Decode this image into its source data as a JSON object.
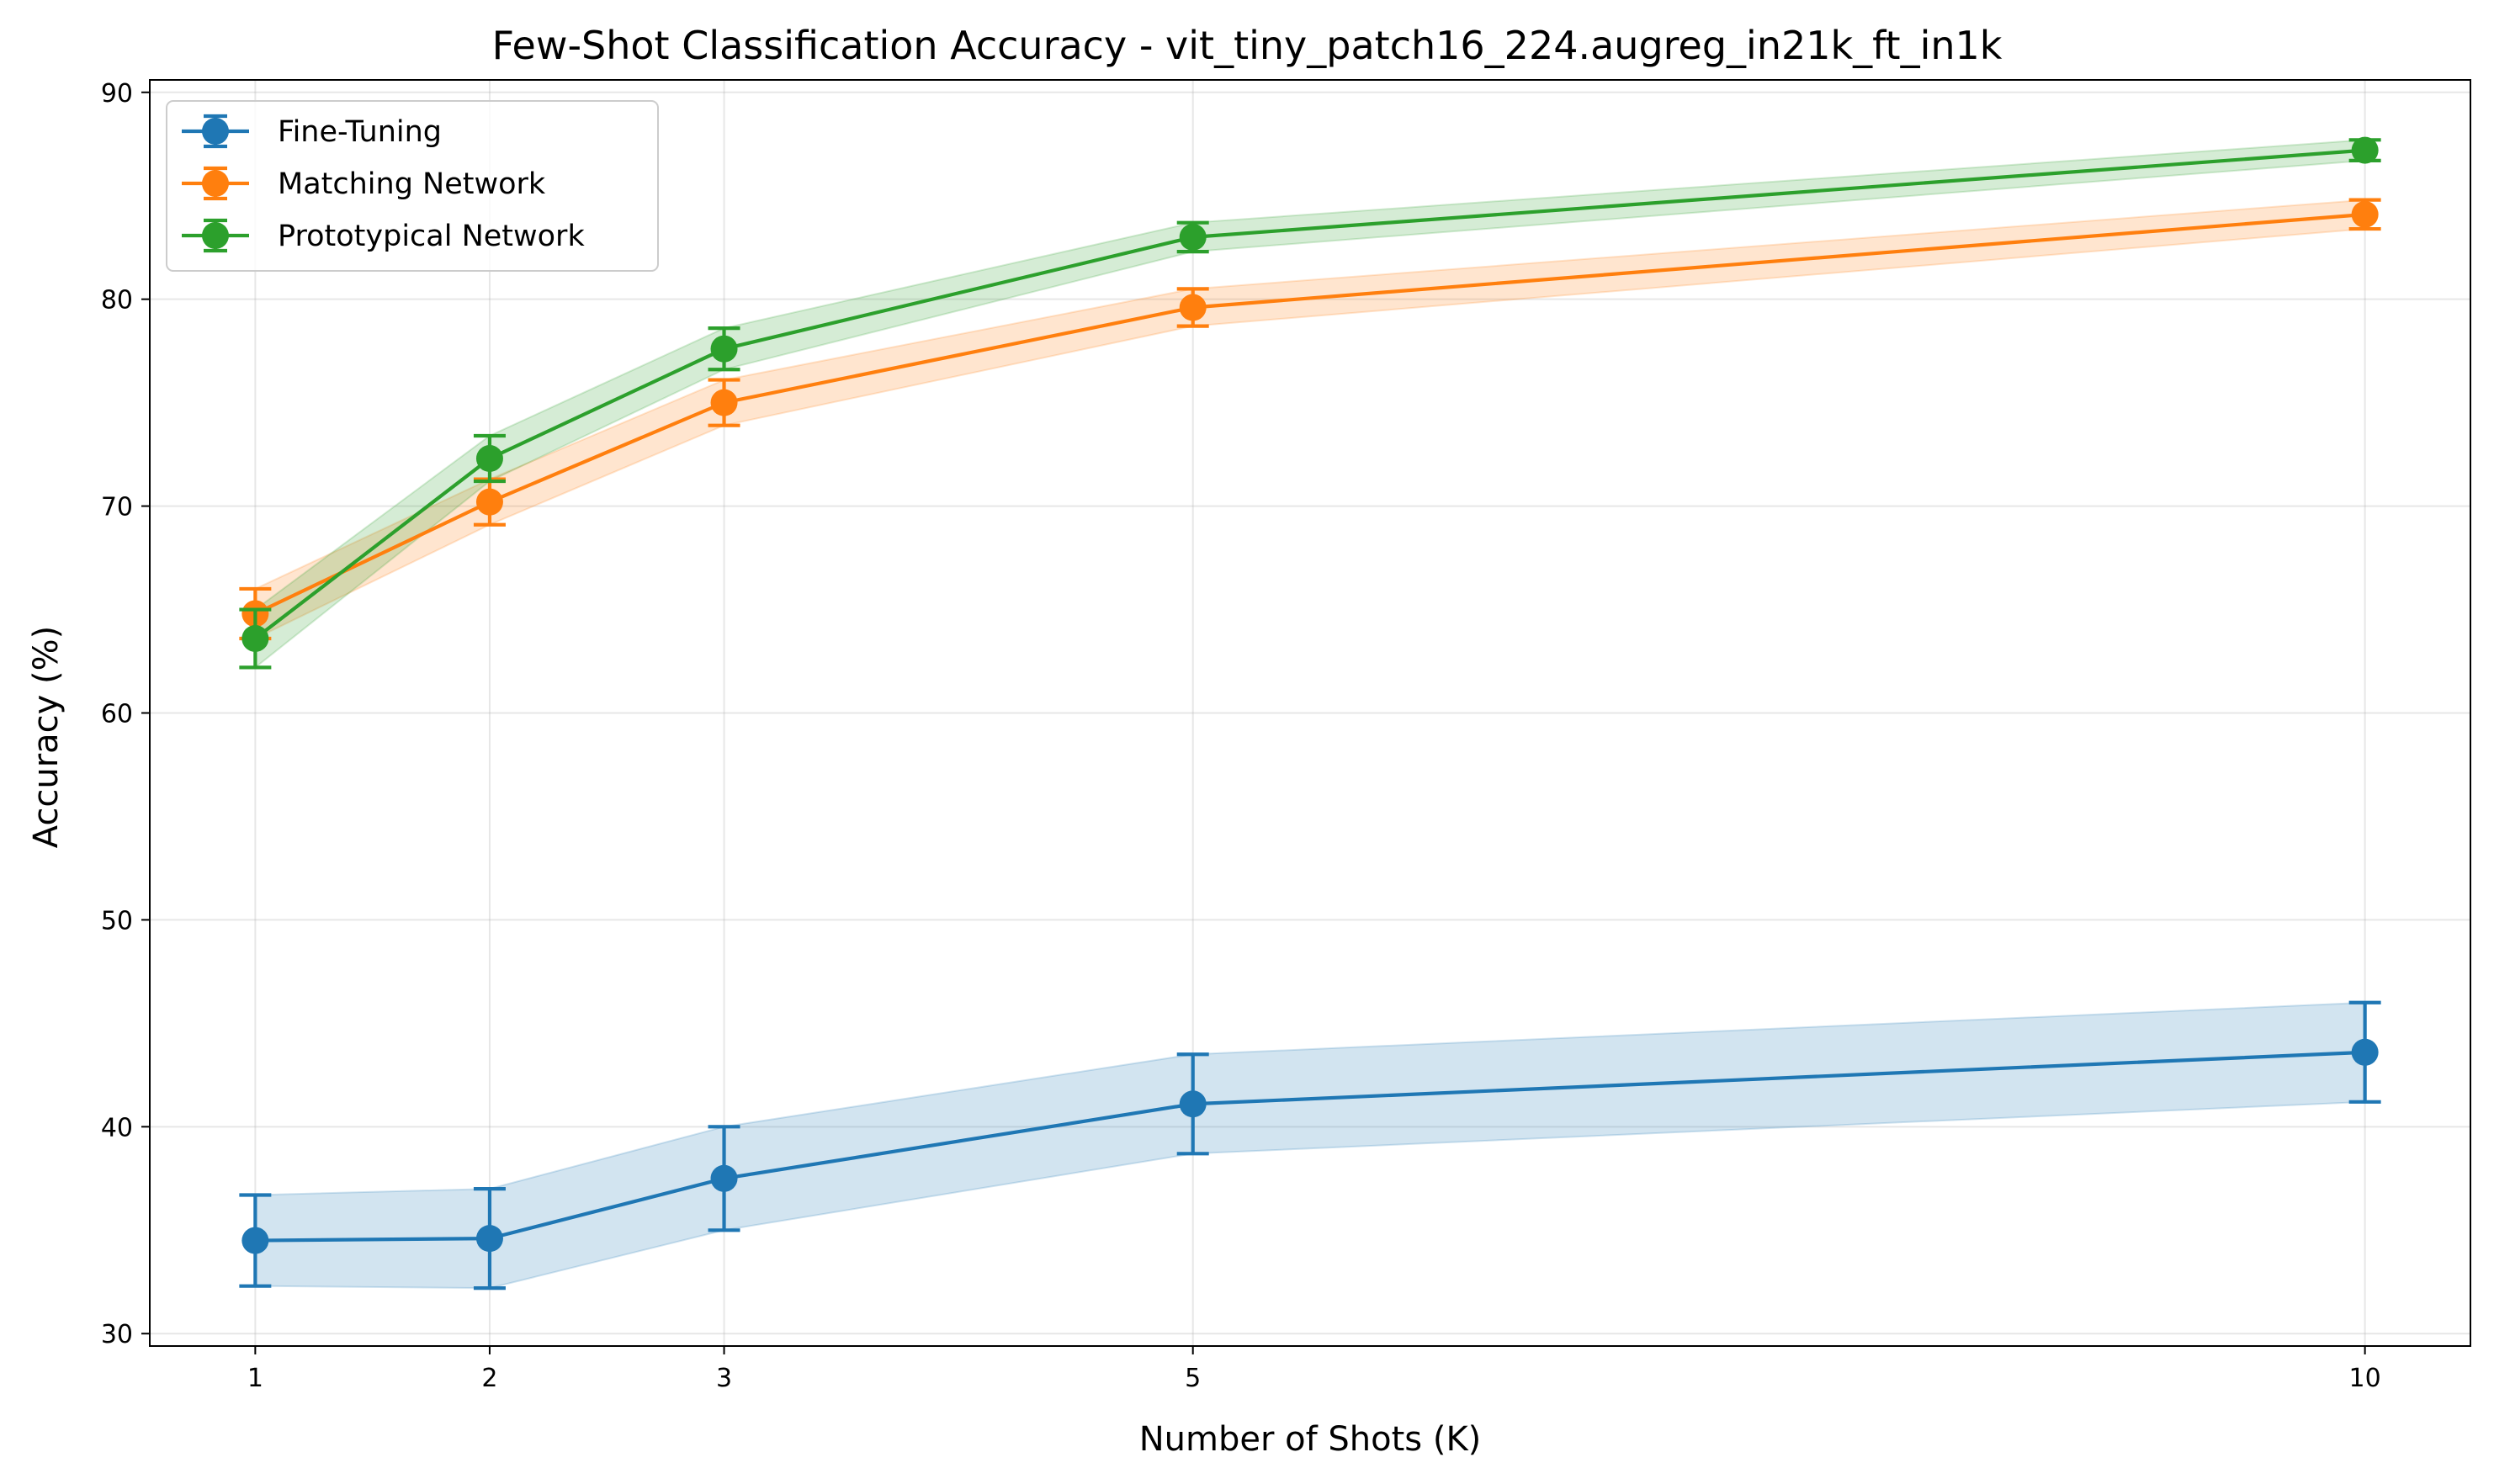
{
  "chart_data": {
    "type": "line",
    "title": "Few-Shot Classification Accuracy - vit_tiny_patch16_224.augreg_in21k_ft_in1k",
    "xlabel": "Number of Shots (K)",
    "ylabel": "Accuracy (%)",
    "x": [
      1,
      2,
      3,
      5,
      10
    ],
    "x_ticks": [
      "1",
      "2",
      "3",
      "5",
      "10"
    ],
    "y_ticks": [
      "30",
      "40",
      "50",
      "60",
      "70",
      "80",
      "90"
    ],
    "xlim": [
      0.55,
      10.45
    ],
    "ylim": [
      29.4,
      90.6
    ],
    "grid": true,
    "legend_position": "top-left",
    "series": [
      {
        "name": "Fine-Tuning",
        "color": "#1f77b4",
        "values": [
          34.5,
          34.6,
          37.5,
          41.1,
          43.6
        ],
        "errors": [
          2.2,
          2.4,
          2.5,
          2.4,
          2.4
        ]
      },
      {
        "name": "Matching Network",
        "color": "#ff7f0e",
        "values": [
          64.8,
          70.2,
          75.0,
          79.6,
          84.1
        ],
        "errors": [
          1.2,
          1.1,
          1.1,
          0.9,
          0.7
        ]
      },
      {
        "name": "Prototypical Network",
        "color": "#2ca02c",
        "values": [
          63.6,
          72.3,
          77.6,
          83.0,
          87.2
        ],
        "errors": [
          1.4,
          1.1,
          1.0,
          0.7,
          0.5
        ]
      }
    ]
  }
}
